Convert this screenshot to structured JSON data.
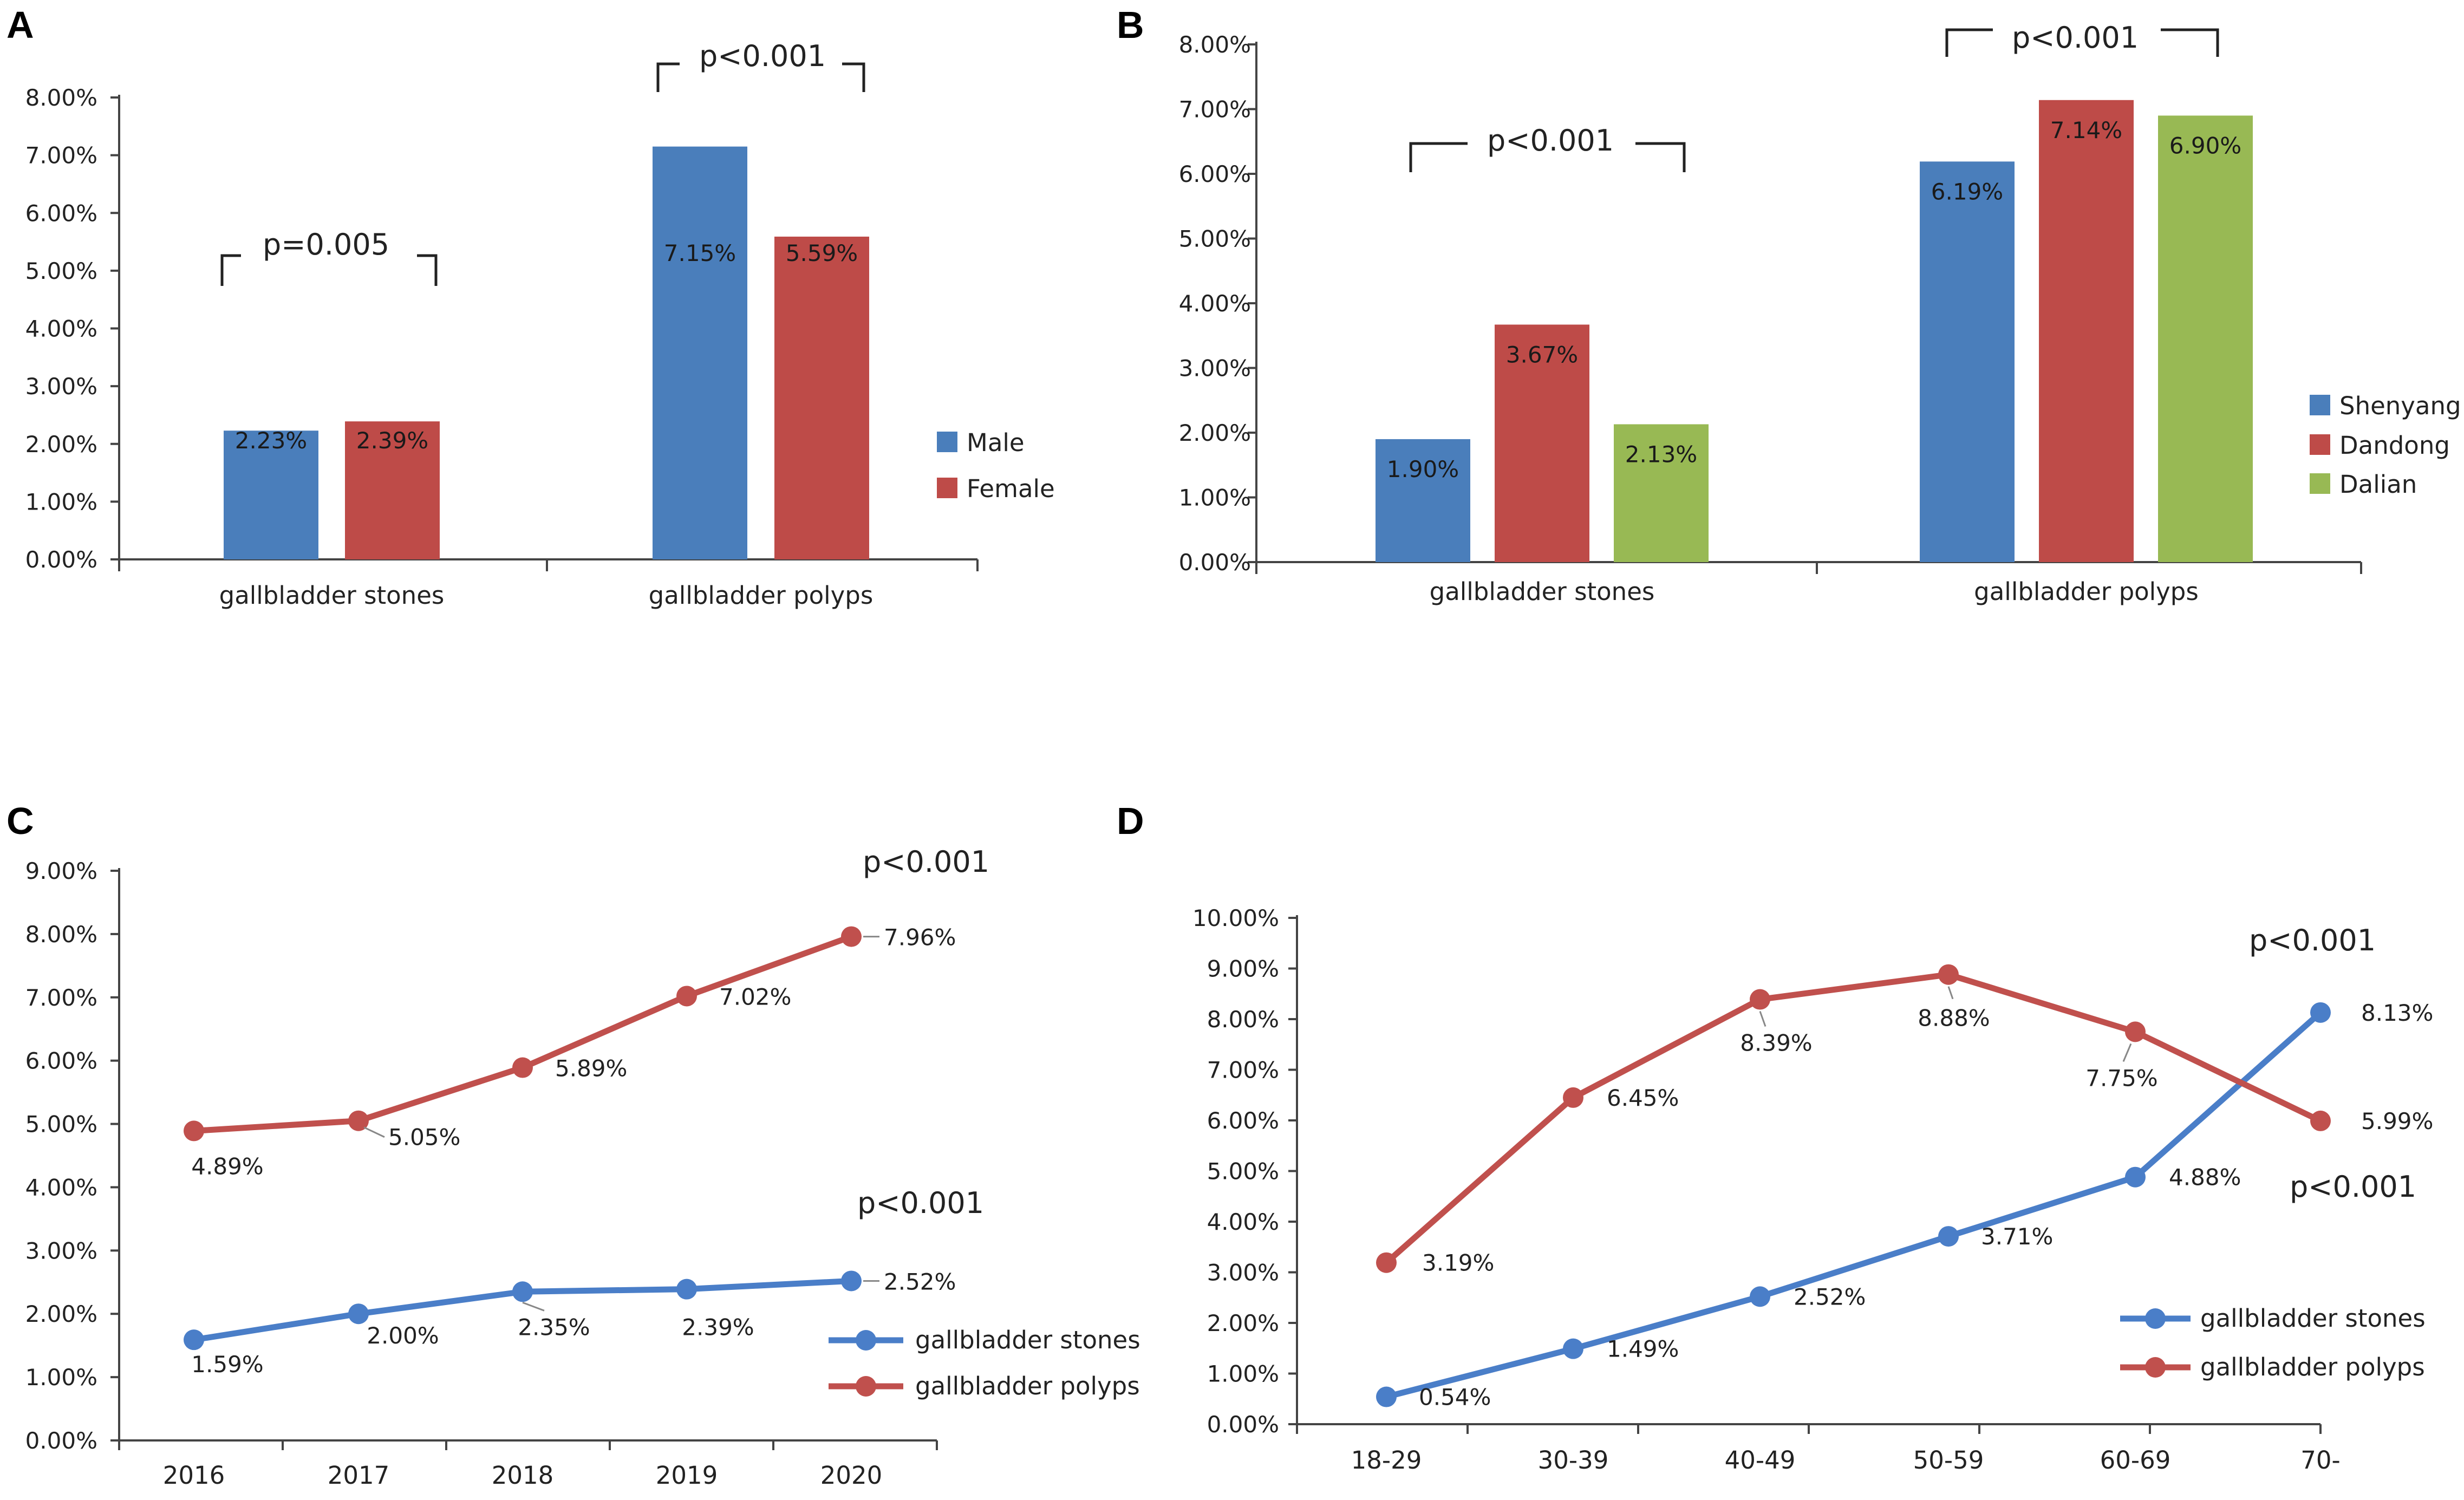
{
  "panels": {
    "a": "A",
    "b": "B",
    "c": "C",
    "d": "D"
  },
  "colors": {
    "blue": "#4A7EBB",
    "red": "#BE4B48",
    "green": "#98B954",
    "line_blue": "#4A7EC8",
    "line_red": "#C0504D"
  },
  "chart_data": [
    {
      "id": "A",
      "type": "bar",
      "categories": [
        "gallbladder stones",
        "gallbladder polyps"
      ],
      "series": [
        {
          "name": "Male",
          "values": [
            2.23,
            7.15
          ],
          "labels": [
            "2.23%",
            "7.15%"
          ]
        },
        {
          "name": "Female",
          "values": [
            2.39,
            5.59
          ],
          "labels": [
            "2.39%",
            "5.59%"
          ]
        }
      ],
      "ylim": [
        0,
        8
      ],
      "yticks": [
        "0.00%",
        "1.00%",
        "2.00%",
        "3.00%",
        "4.00%",
        "5.00%",
        "6.00%",
        "7.00%",
        "8.00%"
      ],
      "legend": "right",
      "pvalues": [
        "p=0.005",
        "p<0.001"
      ]
    },
    {
      "id": "B",
      "type": "bar",
      "categories": [
        "gallbladder stones",
        "gallbladder polyps"
      ],
      "series": [
        {
          "name": "Shenyang",
          "values": [
            1.9,
            6.19
          ],
          "labels": [
            "1.90%",
            "6.19%"
          ]
        },
        {
          "name": "Dandong",
          "values": [
            3.67,
            7.14
          ],
          "labels": [
            "3.67%",
            "7.14%"
          ]
        },
        {
          "name": "Dalian",
          "values": [
            2.13,
            6.9
          ],
          "labels": [
            "2.13%",
            "6.90%"
          ]
        }
      ],
      "ylim": [
        0,
        8
      ],
      "yticks": [
        "0.00%",
        "1.00%",
        "2.00%",
        "3.00%",
        "4.00%",
        "5.00%",
        "6.00%",
        "7.00%",
        "8.00%"
      ],
      "legend": "right",
      "pvalues": [
        "p<0.001",
        "p<0.001"
      ]
    },
    {
      "id": "C",
      "type": "line",
      "categories": [
        "2016",
        "2017",
        "2018",
        "2019",
        "2020"
      ],
      "series": [
        {
          "name": "gallbladder stones",
          "values": [
            1.59,
            2.0,
            2.35,
            2.39,
            2.52
          ],
          "labels": [
            "1.59%",
            "2.00%",
            "2.35%",
            "2.39%",
            "2.52%"
          ]
        },
        {
          "name": "gallbladder polyps",
          "values": [
            4.89,
            5.05,
            5.89,
            7.02,
            7.96
          ],
          "labels": [
            "4.89%",
            "5.05%",
            "5.89%",
            "7.02%",
            "7.96%"
          ]
        }
      ],
      "ylim": [
        0,
        9
      ],
      "yticks": [
        "0.00%",
        "1.00%",
        "2.00%",
        "3.00%",
        "4.00%",
        "5.00%",
        "6.00%",
        "7.00%",
        "8.00%",
        "9.00%"
      ],
      "legend": "bottom-right",
      "pvalues": [
        "p<0.001",
        "p<0.001"
      ]
    },
    {
      "id": "D",
      "type": "line",
      "categories": [
        "18-29",
        "30-39",
        "40-49",
        "50-59",
        "60-69",
        "70-"
      ],
      "series": [
        {
          "name": "gallbladder stones",
          "values": [
            0.54,
            1.49,
            2.52,
            3.71,
            4.88,
            8.13
          ],
          "labels": [
            "0.54%",
            "1.49%",
            "2.52%",
            "3.71%",
            "4.88%",
            "8.13%"
          ]
        },
        {
          "name": "gallbladder polyps",
          "values": [
            3.19,
            6.45,
            8.39,
            8.88,
            7.75,
            5.99
          ],
          "labels": [
            "3.19%",
            "6.45%",
            "8.39%",
            "8.88%",
            "7.75%",
            "5.99%"
          ]
        }
      ],
      "ylim": [
        0,
        10
      ],
      "yticks": [
        "0.00%",
        "1.00%",
        "2.00%",
        "3.00%",
        "4.00%",
        "5.00%",
        "6.00%",
        "7.00%",
        "8.00%",
        "9.00%",
        "10.00%"
      ],
      "legend": "bottom-right",
      "pvalues": [
        "p<0.001",
        "p<0.001"
      ]
    }
  ]
}
